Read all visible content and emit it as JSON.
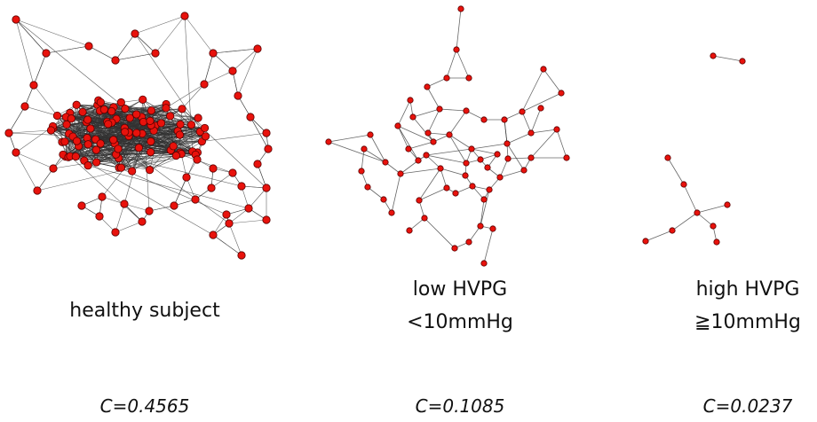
{
  "panels": [
    {
      "label_lines": [
        "healthy subject"
      ],
      "metric": "C=0.4565"
    },
    {
      "label_lines": [
        "low HVPG",
        "<10mmHg"
      ],
      "metric": "C=0.1085"
    },
    {
      "label_lines": [
        "high HVPG",
        "≧10mmHg"
      ],
      "metric": "C=0.0237"
    }
  ],
  "colors": {
    "node": "#e8120c",
    "edge": "#333333"
  }
}
